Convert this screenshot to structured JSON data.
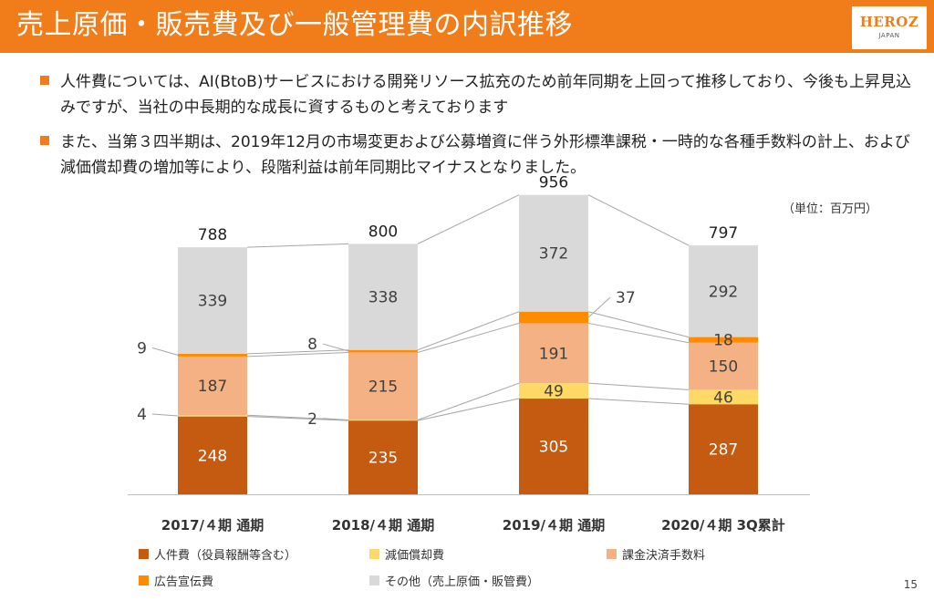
{
  "slide": {
    "title": "売上原価・販売費及び一般管理費の内訳推移",
    "logo": {
      "name": "HEROZ",
      "sub": "JAPAN"
    },
    "bullets": [
      "人件費については、AI(BtoB)サービスにおける開発リソース拡充のため前年同期を上回って推移しており、今後も上昇見込みですが、当社の中長期的な成長に資するものと考えております",
      "また、当第３四半期は、2019年12月の市場変更および公募増資に伴う外形標準課税・一時的な各種手数料の計上、および減価償却費の増加等により、段階利益は前年同期比マイナスとなりました。"
    ],
    "unit_note": "（単位：百万円）",
    "page_number": "15"
  },
  "chart_data": {
    "type": "bar",
    "stacked": true,
    "categories": [
      "2017/４期 通期",
      "2018/４期 通期",
      "2019/４期 通期",
      "2020/４期 3Q累計"
    ],
    "series": [
      {
        "name": "人件費（役員報酬等含む）",
        "color": "#c55a11",
        "values": [
          248,
          235,
          305,
          287
        ]
      },
      {
        "name": "減価償却費",
        "color": "#ffd966",
        "values": [
          4,
          2,
          49,
          46
        ]
      },
      {
        "name": "課金決済手数料",
        "color": "#f4b183",
        "values": [
          187,
          215,
          191,
          150
        ]
      },
      {
        "name": "広告宣伝費",
        "color": "#ff8c00",
        "values": [
          9,
          8,
          37,
          18
        ]
      },
      {
        "name": "その他（売上原価・販管費）",
        "color": "#d9d9d9",
        "values": [
          339,
          338,
          372,
          292
        ]
      }
    ],
    "totals": [
      788,
      800,
      956,
      797
    ],
    "label_placement": [
      [
        "inside",
        "outside-left",
        "inside",
        "outside-left",
        "inside"
      ],
      [
        "inside",
        "outside-left",
        "inside",
        "outside-left",
        "inside"
      ],
      [
        "inside",
        "inside",
        "inside",
        "outside-right",
        "inside"
      ],
      [
        "inside",
        "inside",
        "inside",
        "inside",
        "inside"
      ]
    ],
    "connector_lines": true,
    "legend_position": "bottom",
    "ylim": [
      0,
      956
    ]
  }
}
